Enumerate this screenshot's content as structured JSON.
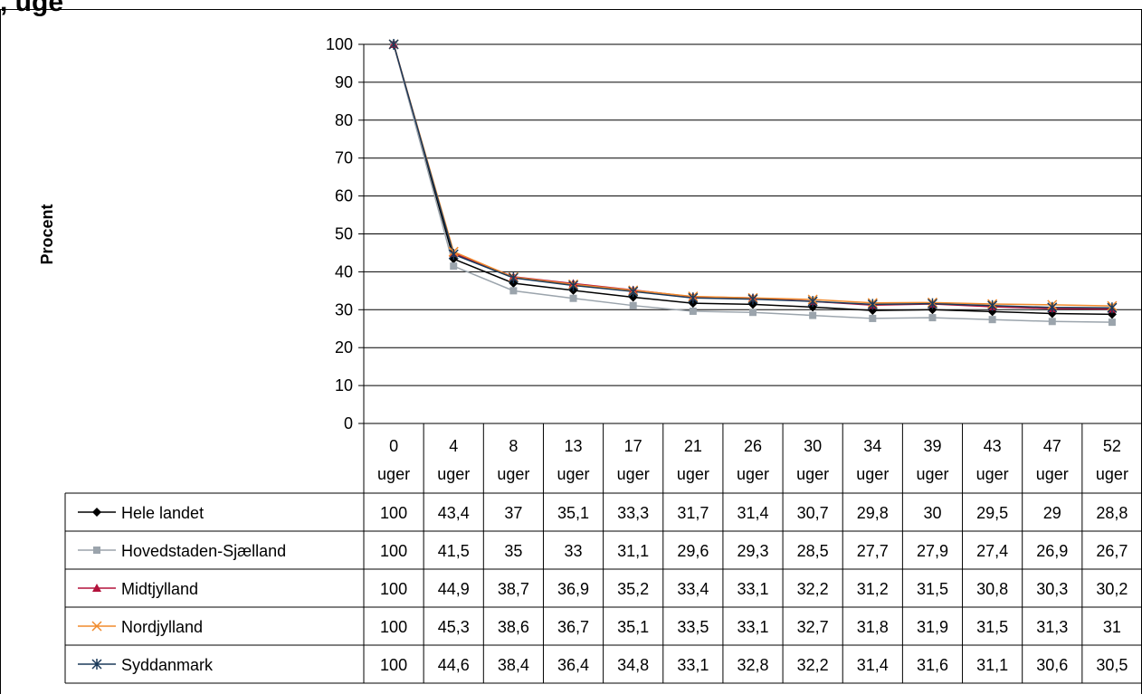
{
  "page": {
    "title_fragment": ", uge"
  },
  "colors": {
    "Hele landet": "#000000",
    "Hovedstaden-Sjælland": "#9ba4ac",
    "Midtjylland": "#b3123c",
    "Nordjylland": "#f08a2c",
    "Syddanmark": "#1b3a5a"
  },
  "chart_data": {
    "type": "line",
    "ylabel": "Procent",
    "ylim": [
      0,
      100
    ],
    "yticks": [
      0,
      10,
      20,
      30,
      40,
      50,
      60,
      70,
      80,
      90,
      100
    ],
    "grid": true,
    "legend": "data-table-left",
    "categories": [
      [
        "0",
        "uger"
      ],
      [
        "4",
        "uger"
      ],
      [
        "8",
        "uger"
      ],
      [
        "13",
        "uger"
      ],
      [
        "17",
        "uger"
      ],
      [
        "21",
        "uger"
      ],
      [
        "26",
        "uger"
      ],
      [
        "30",
        "uger"
      ],
      [
        "34",
        "uger"
      ],
      [
        "39",
        "uger"
      ],
      [
        "43",
        "uger"
      ],
      [
        "47",
        "uger"
      ],
      [
        "52",
        "uger"
      ]
    ],
    "series": [
      {
        "name": "Hele landet",
        "marker": "diamond",
        "values": [
          100,
          43.4,
          37,
          35.1,
          33.3,
          31.7,
          31.4,
          30.7,
          29.8,
          30,
          29.5,
          29,
          28.8
        ],
        "labels": [
          "100",
          "43,4",
          "37",
          "35,1",
          "33,3",
          "31,7",
          "31,4",
          "30,7",
          "29,8",
          "30",
          "29,5",
          "29",
          "28,8"
        ]
      },
      {
        "name": "Hovedstaden-Sjælland",
        "marker": "square",
        "values": [
          100,
          41.5,
          35,
          33,
          31.1,
          29.6,
          29.3,
          28.5,
          27.7,
          27.9,
          27.4,
          26.9,
          26.7
        ],
        "labels": [
          "100",
          "41,5",
          "35",
          "33",
          "31,1",
          "29,6",
          "29,3",
          "28,5",
          "27,7",
          "27,9",
          "27,4",
          "26,9",
          "26,7"
        ]
      },
      {
        "name": "Midtjylland",
        "marker": "triangle",
        "values": [
          100,
          44.9,
          38.7,
          36.9,
          35.2,
          33.4,
          33.1,
          32.2,
          31.2,
          31.5,
          30.8,
          30.3,
          30.2
        ],
        "labels": [
          "100",
          "44,9",
          "38,7",
          "36,9",
          "35,2",
          "33,4",
          "33,1",
          "32,2",
          "31,2",
          "31,5",
          "30,8",
          "30,3",
          "30,2"
        ]
      },
      {
        "name": "Nordjylland",
        "marker": "x",
        "values": [
          100,
          45.3,
          38.6,
          36.7,
          35.1,
          33.5,
          33.1,
          32.7,
          31.8,
          31.9,
          31.5,
          31.3,
          31
        ],
        "labels": [
          "100",
          "45,3",
          "38,6",
          "36,7",
          "35,1",
          "33,5",
          "33,1",
          "32,7",
          "31,8",
          "31,9",
          "31,5",
          "31,3",
          "31"
        ]
      },
      {
        "name": "Syddanmark",
        "marker": "star",
        "values": [
          100,
          44.6,
          38.4,
          36.4,
          34.8,
          33.1,
          32.8,
          32.2,
          31.4,
          31.6,
          31.1,
          30.6,
          30.5
        ],
        "labels": [
          "100",
          "44,6",
          "38,4",
          "36,4",
          "34,8",
          "33,1",
          "32,8",
          "32,2",
          "31,4",
          "31,6",
          "31,1",
          "30,6",
          "30,5"
        ]
      }
    ]
  }
}
